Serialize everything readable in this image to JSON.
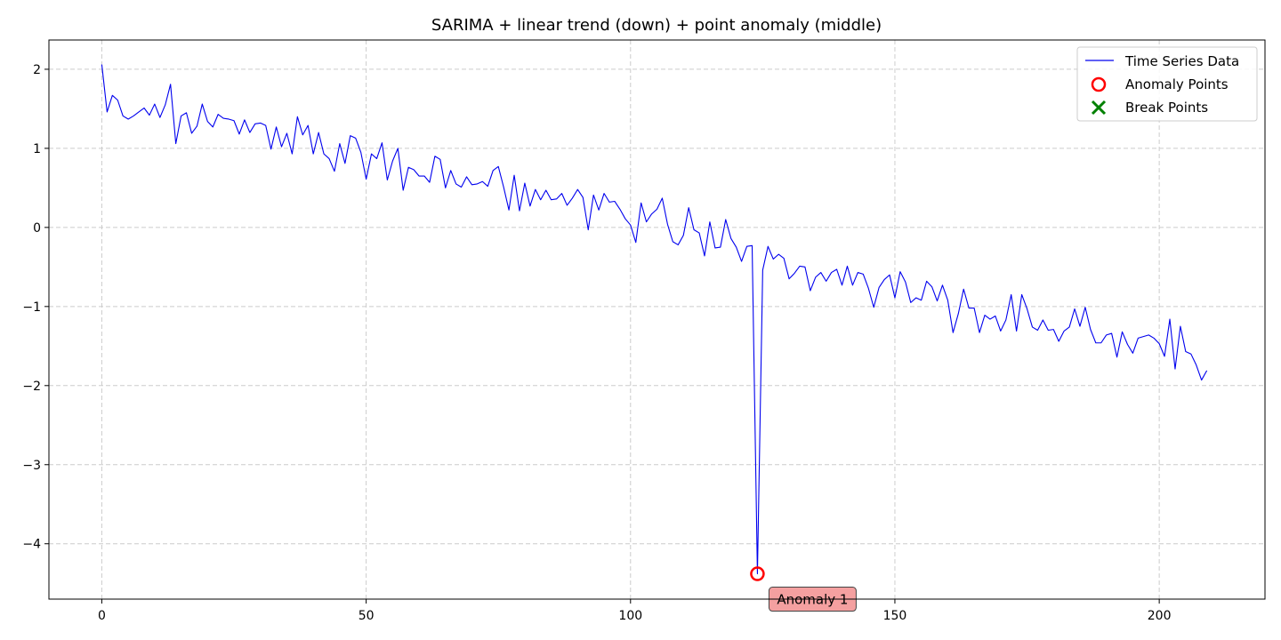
{
  "chart_data": {
    "type": "line",
    "title": "SARIMA + linear trend (down) + point anomaly (middle)",
    "xlabel": "",
    "ylabel": "",
    "xlim": [
      -10,
      220
    ],
    "ylim": [
      -4.7,
      2.37
    ],
    "xticks": [
      0,
      50,
      100,
      150,
      200
    ],
    "xtick_labels": [
      "0",
      "50",
      "100",
      "150",
      "200"
    ],
    "yticks": [
      2,
      1,
      0,
      -1,
      -2,
      -3,
      -4
    ],
    "ytick_labels": [
      "2",
      "1",
      "0",
      "−1",
      "−2",
      "−3",
      "−4"
    ],
    "grid": true,
    "legend_position": "top-right",
    "series": [
      {
        "name": "Time Series Data",
        "color": "#0000ee",
        "x_start": 0,
        "x_step": 1,
        "values": [
          2.06,
          1.46,
          1.67,
          1.61,
          1.41,
          1.37,
          1.41,
          1.46,
          1.51,
          1.42,
          1.56,
          1.39,
          1.55,
          1.81,
          1.06,
          1.41,
          1.45,
          1.19,
          1.28,
          1.56,
          1.34,
          1.27,
          1.43,
          1.38,
          1.37,
          1.35,
          1.18,
          1.36,
          1.2,
          1.31,
          1.32,
          1.29,
          0.99,
          1.27,
          1.02,
          1.19,
          0.93,
          1.4,
          1.17,
          1.29,
          0.93,
          1.2,
          0.93,
          0.87,
          0.71,
          1.06,
          0.81,
          1.16,
          1.13,
          0.95,
          0.61,
          0.93,
          0.87,
          1.07,
          0.6,
          0.84,
          1.0,
          0.47,
          0.76,
          0.73,
          0.65,
          0.65,
          0.57,
          0.9,
          0.86,
          0.5,
          0.72,
          0.55,
          0.51,
          0.64,
          0.54,
          0.55,
          0.58,
          0.52,
          0.72,
          0.77,
          0.51,
          0.22,
          0.66,
          0.21,
          0.56,
          0.27,
          0.48,
          0.35,
          0.47,
          0.35,
          0.36,
          0.43,
          0.28,
          0.37,
          0.48,
          0.38,
          -0.03,
          0.41,
          0.22,
          0.43,
          0.32,
          0.33,
          0.23,
          0.11,
          0.03,
          -0.19,
          0.31,
          0.07,
          0.17,
          0.23,
          0.37,
          0.04,
          -0.18,
          -0.22,
          -0.1,
          0.25,
          -0.03,
          -0.07,
          -0.36,
          0.07,
          -0.26,
          -0.25,
          0.1,
          -0.14,
          -0.25,
          -0.43,
          -0.24,
          -0.23,
          -4.38,
          -0.54,
          -0.24,
          -0.4,
          -0.34,
          -0.39,
          -0.65,
          -0.58,
          -0.49,
          -0.5,
          -0.8,
          -0.63,
          -0.57,
          -0.68,
          -0.57,
          -0.53,
          -0.73,
          -0.49,
          -0.73,
          -0.57,
          -0.59,
          -0.77,
          -1.01,
          -0.76,
          -0.66,
          -0.6,
          -0.89,
          -0.56,
          -0.69,
          -0.95,
          -0.89,
          -0.92,
          -0.68,
          -0.75,
          -0.93,
          -0.73,
          -0.92,
          -1.33,
          -1.09,
          -0.78,
          -1.02,
          -1.02,
          -1.33,
          -1.11,
          -1.16,
          -1.12,
          -1.31,
          -1.17,
          -0.85,
          -1.31,
          -0.85,
          -1.03,
          -1.26,
          -1.3,
          -1.17,
          -1.3,
          -1.29,
          -1.44,
          -1.31,
          -1.26,
          -1.03,
          -1.25,
          -1.01,
          -1.29,
          -1.46,
          -1.46,
          -1.36,
          -1.34,
          -1.64,
          -1.32,
          -1.48,
          -1.59,
          -1.4,
          -1.38,
          -1.36,
          -1.4,
          -1.47,
          -1.63,
          -1.16,
          -1.79,
          -1.25,
          -1.57,
          -1.6,
          -1.74,
          -1.93,
          -1.81
        ]
      }
    ],
    "anomaly_points": {
      "name": "Anomaly Points",
      "color": "#ff0000",
      "points": [
        {
          "x": 124,
          "y": -4.38
        }
      ]
    },
    "break_points": {
      "name": "Break Points",
      "color": "#008000",
      "points": []
    },
    "annotations": [
      {
        "text": "Anomaly 1",
        "x": 124,
        "y": -4.38,
        "box_color": "#f4a0a0"
      }
    ]
  }
}
